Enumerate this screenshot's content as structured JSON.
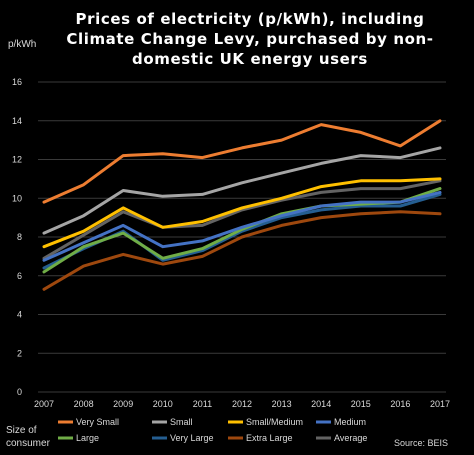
{
  "chart_data": {
    "type": "line",
    "title_lines": [
      "Prices of electricity (p/kWh), including",
      "Climate Change Levy, purchased by non-",
      "domestic UK energy users"
    ],
    "y_unit_label": "p/kWh",
    "x_axis_label": "Size of consumer",
    "source": "Source: BEIS",
    "ylim": [
      0,
      16
    ],
    "yticks": [
      0,
      2,
      4,
      6,
      8,
      10,
      12,
      14,
      16
    ],
    "x": [
      "2007",
      "2008",
      "2009",
      "2010",
      "2011",
      "2012",
      "2013",
      "2014",
      "2015",
      "2016",
      "2017"
    ],
    "grid": true,
    "legend_placement": "bottom",
    "series": [
      {
        "name": "Very Small",
        "color": "#ed7d31",
        "values": [
          9.8,
          10.7,
          12.2,
          12.3,
          12.1,
          12.6,
          13.0,
          13.8,
          13.4,
          12.7,
          14.0
        ]
      },
      {
        "name": "Small",
        "color": "#a5a5a5",
        "values": [
          8.2,
          9.1,
          10.4,
          10.1,
          10.2,
          10.8,
          11.3,
          11.8,
          12.2,
          12.1,
          12.6
        ]
      },
      {
        "name": "Small/Medium",
        "color": "#ffc000",
        "values": [
          7.5,
          8.3,
          9.5,
          8.5,
          8.8,
          9.5,
          10.0,
          10.6,
          10.9,
          10.9,
          11.0
        ]
      },
      {
        "name": "Medium",
        "color": "#4472c4",
        "values": [
          6.8,
          7.7,
          8.6,
          7.5,
          7.8,
          8.5,
          9.1,
          9.6,
          9.8,
          9.8,
          10.3
        ]
      },
      {
        "name": "Large",
        "color": "#70ad47",
        "values": [
          6.2,
          7.5,
          8.2,
          6.9,
          7.4,
          8.4,
          9.2,
          9.6,
          9.7,
          9.8,
          10.5
        ]
      },
      {
        "name": "Very Large",
        "color": "#255e91",
        "values": [
          6.4,
          7.4,
          8.3,
          6.8,
          7.3,
          8.3,
          9.0,
          9.4,
          9.6,
          9.6,
          10.2
        ]
      },
      {
        "name": "Extra Large",
        "color": "#9e480e",
        "values": [
          5.3,
          6.5,
          7.1,
          6.6,
          7.0,
          8.0,
          8.6,
          9.0,
          9.2,
          9.3,
          9.2
        ]
      },
      {
        "name": "Average",
        "color": "#636363",
        "values": [
          6.9,
          8.1,
          9.3,
          8.5,
          8.6,
          9.4,
          9.9,
          10.3,
          10.5,
          10.5,
          10.9
        ]
      }
    ]
  }
}
